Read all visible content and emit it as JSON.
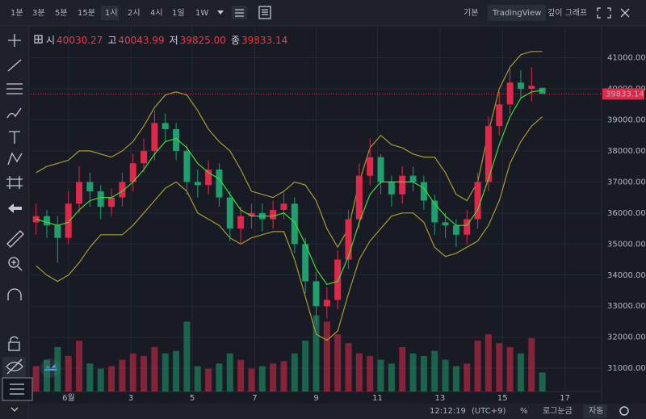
{
  "toolbar": {
    "intervals": [
      "1분",
      "3분",
      "5분",
      "15분",
      "1시",
      "2시",
      "4시",
      "1일",
      "1W"
    ],
    "selected": 4,
    "views": [
      "기본",
      "TradingView",
      "깊이 그래프"
    ],
    "selected_view": 1
  },
  "legend": [
    {
      "label": "시",
      "value": "40030.27"
    },
    {
      "label": "고",
      "value": "40043.99"
    },
    {
      "label": "저",
      "value": "39825.00"
    },
    {
      "label": "종",
      "value": "39833.14"
    }
  ],
  "chart_data": {
    "type": "candlestick",
    "x": [
      0.5,
      1.5,
      2.5,
      3.5,
      4.5,
      5.5,
      6.5,
      7.5,
      8.5,
      9.5,
      10.5,
      11.5,
      12.5,
      13.5,
      14.5,
      15.5,
      16.5,
      17.5,
      18.5,
      19.5,
      20.5,
      21.5,
      22.5,
      23.5,
      24.5,
      25.5,
      26.5,
      27.5,
      28.5,
      29.5,
      30.5,
      31.5,
      32.5,
      33.5,
      34.5,
      35.5,
      36.5,
      37.5,
      38.5,
      39.5,
      40.5,
      41.5,
      42.5,
      43.5,
      44.5,
      45.5,
      46.5,
      47.5
    ],
    "open": [
      35700,
      35900,
      35600,
      35200,
      36300,
      37000,
      36700,
      36200,
      36500,
      37000,
      37600,
      38000,
      38900,
      38700,
      38000,
      37000,
      36900,
      37400,
      36500,
      35500,
      35900,
      36000,
      35800,
      36100,
      36300,
      35000,
      33800,
      33000,
      33200,
      34500,
      35800,
      37200,
      37800,
      37000,
      36600,
      37200,
      37000,
      36400,
      35700,
      35600,
      35300,
      35800,
      37000,
      38800,
      39500,
      40200,
      40000,
      40030.27
    ],
    "high": [
      36300,
      36100,
      35900,
      36700,
      37500,
      37300,
      36900,
      36800,
      37300,
      37900,
      38400,
      39300,
      39200,
      38900,
      38200,
      37400,
      37700,
      37600,
      36700,
      36200,
      36300,
      36300,
      36400,
      36700,
      36500,
      35200,
      34100,
      33600,
      34800,
      36100,
      37600,
      38400,
      37900,
      37200,
      37500,
      37500,
      37200,
      36600,
      36000,
      35800,
      36100,
      37300,
      39100,
      39900,
      40700,
      40600,
      40700,
      40043.99
    ],
    "low": [
      35300,
      35200,
      34400,
      35000,
      36000,
      36200,
      35800,
      35900,
      36200,
      36700,
      37300,
      37700,
      38300,
      37700,
      36600,
      36500,
      36600,
      36200,
      35100,
      35000,
      35500,
      35400,
      35500,
      35800,
      34700,
      33400,
      32400,
      32600,
      32900,
      34200,
      35500,
      36900,
      36600,
      36200,
      36300,
      36700,
      36100,
      35300,
      35200,
      34900,
      35000,
      35500,
      36700,
      38500,
      39200,
      39700,
      39600,
      39825
    ],
    "close": [
      35900,
      35600,
      35200,
      36300,
      37000,
      36700,
      36200,
      36500,
      37000,
      37600,
      38000,
      38900,
      38700,
      38000,
      37000,
      36900,
      37400,
      36500,
      35500,
      35900,
      36000,
      35800,
      36100,
      36300,
      35000,
      33800,
      33000,
      33200,
      34500,
      35800,
      37200,
      37800,
      37000,
      36600,
      37200,
      37000,
      36400,
      35700,
      35600,
      35300,
      35800,
      37000,
      38800,
      39500,
      40200,
      40000,
      40100,
      39833.14
    ],
    "volume": [
      20,
      25,
      35,
      28,
      40,
      22,
      18,
      20,
      25,
      30,
      28,
      35,
      30,
      32,
      55,
      20,
      18,
      22,
      30,
      25,
      18,
      20,
      22,
      24,
      30,
      40,
      60,
      55,
      45,
      38,
      30,
      28,
      25,
      22,
      35,
      30,
      28,
      32,
      25,
      20,
      22,
      40,
      45,
      38,
      35,
      30,
      42,
      15
    ],
    "vlim": [
      0,
      100
    ],
    "overlays": [
      {
        "color": "#a89a34",
        "values": [
          37300,
          37500,
          37600,
          37700,
          38000,
          38000,
          37900,
          37800,
          38000,
          38300,
          38800,
          39400,
          39800,
          39900,
          39800,
          39300,
          38700,
          38300,
          38000,
          37400,
          36700,
          36600,
          36500,
          36700,
          37000,
          36900,
          36400,
          35500,
          34900,
          35500,
          37000,
          38100,
          38500,
          38200,
          38100,
          37900,
          37800,
          37800,
          37300,
          36600,
          36400,
          37000,
          38600,
          40000,
          40700,
          41100,
          41200,
          41200
        ]
      },
      {
        "color": "#a89a34",
        "values": [
          34300,
          34000,
          33800,
          34000,
          34400,
          34900,
          35300,
          35300,
          35300,
          35600,
          36000,
          36400,
          36800,
          37000,
          36700,
          36000,
          35800,
          35600,
          35200,
          35000,
          35200,
          35300,
          35400,
          35400,
          34500,
          33300,
          32100,
          31900,
          32200,
          33400,
          34500,
          35100,
          35500,
          35900,
          36000,
          36000,
          35700,
          34900,
          34600,
          34700,
          34900,
          35100,
          35600,
          36400,
          37600,
          38300,
          38800,
          39100
        ]
      },
      {
        "color": "#3fdc3a",
        "values": [
          35800,
          35700,
          35600,
          35700,
          36100,
          36400,
          36500,
          36500,
          36700,
          37000,
          37400,
          37900,
          38300,
          38400,
          38100,
          37600,
          37300,
          37100,
          36600,
          36100,
          35900,
          35900,
          35900,
          36000,
          35700,
          35000,
          34200,
          33700,
          33800,
          34600,
          35700,
          36600,
          37000,
          37000,
          37000,
          37000,
          36800,
          36300,
          35900,
          35600,
          35600,
          36100,
          37100,
          38200,
          39100,
          39700,
          39900,
          39950
        ]
      }
    ],
    "up_color": "#e0294a",
    "down_color": "#1f9e6e",
    "xlim": [
      0,
      53
    ],
    "xticks": [
      {
        "value": 3.52,
        "label": "6월"
      },
      {
        "value": 9.3,
        "label": "3"
      },
      {
        "value": 15.0,
        "label": "5"
      },
      {
        "value": 20.8,
        "label": "7"
      },
      {
        "value": 26.5,
        "label": "9"
      },
      {
        "value": 32.2,
        "label": "11"
      },
      {
        "value": 38.0,
        "label": "13"
      },
      {
        "value": 43.8,
        "label": "15"
      },
      {
        "value": 49.6,
        "label": "17"
      }
    ],
    "ylim": [
      30250,
      41950
    ],
    "yticks": [
      {
        "value": 31000,
        "label": "31000.00"
      },
      {
        "value": 32000,
        "label": "32000.00"
      },
      {
        "value": 33000,
        "label": "33000.00"
      },
      {
        "value": 34000,
        "label": "34000.00"
      },
      {
        "value": 35000,
        "label": "35000.00"
      },
      {
        "value": 36000,
        "label": "36000.00"
      },
      {
        "value": 37000,
        "label": "37000.00"
      },
      {
        "value": 38000,
        "label": "38000.00"
      },
      {
        "value": 39000,
        "label": "39000.00"
      },
      {
        "value": 40000,
        "label": "40000.00"
      },
      {
        "value": 41000,
        "label": "41000.00"
      }
    ],
    "grid": true,
    "last_price": 39833.14
  },
  "status_bar": {
    "time": "12:12:19",
    "timezone": "(UTC+9)",
    "percent": "%",
    "log": "로그눈금",
    "auto": "자동"
  }
}
